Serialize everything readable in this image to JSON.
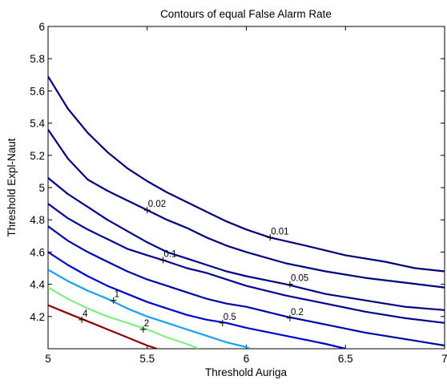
{
  "chart_data": {
    "type": "line",
    "title": "Contours of equal False Alarm Rate",
    "xlabel": "Threshold Auriga",
    "ylabel": "Threshold Expl-Naut",
    "xlim": [
      5,
      7
    ],
    "ylim": [
      4,
      6
    ],
    "xticks": [
      "5",
      "5.5",
      "6",
      "6.5",
      "7"
    ],
    "yticks": [
      "4.2",
      "4.4",
      "4.6",
      "4.8",
      "5",
      "5.2",
      "5.4",
      "5.6",
      "5.8",
      "6"
    ],
    "grid": false,
    "series": [
      {
        "name": "0.01",
        "color": "#00007a",
        "points": [
          [
            5.0,
            5.69
          ],
          [
            5.1,
            5.49
          ],
          [
            5.2,
            5.34
          ],
          [
            5.3,
            5.22
          ],
          [
            5.4,
            5.12
          ],
          [
            5.5,
            5.04
          ],
          [
            5.6,
            4.97
          ],
          [
            5.7,
            4.91
          ],
          [
            5.8,
            4.85
          ],
          [
            5.9,
            4.79
          ],
          [
            6.0,
            4.74
          ],
          [
            6.12,
            4.69
          ],
          [
            6.3,
            4.64
          ],
          [
            6.5,
            4.58
          ],
          [
            6.7,
            4.54
          ],
          [
            6.85,
            4.5
          ],
          [
            7.0,
            4.48
          ]
        ]
      },
      {
        "name": "0.02",
        "color": "#00007f",
        "points": [
          [
            5.0,
            5.36
          ],
          [
            5.1,
            5.18
          ],
          [
            5.2,
            5.05
          ],
          [
            5.3,
            4.98
          ],
          [
            5.4,
            4.92
          ],
          [
            5.5,
            4.86
          ],
          [
            5.6,
            4.8
          ],
          [
            5.7,
            4.75
          ],
          [
            5.8,
            4.69
          ],
          [
            5.9,
            4.64
          ],
          [
            6.0,
            4.6
          ],
          [
            6.2,
            4.53
          ],
          [
            6.4,
            4.48
          ],
          [
            6.6,
            4.44
          ],
          [
            6.8,
            4.41
          ],
          [
            7.0,
            4.38
          ]
        ]
      },
      {
        "name": "0.05",
        "color": "#000088",
        "points": [
          [
            5.0,
            5.06
          ],
          [
            5.1,
            4.96
          ],
          [
            5.2,
            4.88
          ],
          [
            5.3,
            4.8
          ],
          [
            5.4,
            4.73
          ],
          [
            5.5,
            4.66
          ],
          [
            5.6,
            4.6
          ],
          [
            5.7,
            4.56
          ],
          [
            5.8,
            4.52
          ],
          [
            5.9,
            4.48
          ],
          [
            6.0,
            4.45
          ],
          [
            6.2,
            4.4
          ],
          [
            6.4,
            4.34
          ],
          [
            6.6,
            4.3
          ],
          [
            6.8,
            4.26
          ],
          [
            7.0,
            4.24
          ]
        ]
      },
      {
        "name": "0.1",
        "color": "#000094",
        "points": [
          [
            5.0,
            4.9
          ],
          [
            5.1,
            4.81
          ],
          [
            5.2,
            4.74
          ],
          [
            5.3,
            4.68
          ],
          [
            5.4,
            4.62
          ],
          [
            5.5,
            4.58
          ],
          [
            5.58,
            4.55
          ],
          [
            5.7,
            4.5
          ],
          [
            5.8,
            4.47
          ],
          [
            5.9,
            4.43
          ],
          [
            6.0,
            4.39
          ],
          [
            6.2,
            4.33
          ],
          [
            6.4,
            4.28
          ],
          [
            6.6,
            4.23
          ],
          [
            6.8,
            4.19
          ],
          [
            7.0,
            4.16
          ]
        ]
      },
      {
        "name": "0.2",
        "color": "#0000a8",
        "points": [
          [
            5.0,
            4.76
          ],
          [
            5.1,
            4.67
          ],
          [
            5.2,
            4.6
          ],
          [
            5.3,
            4.54
          ],
          [
            5.4,
            4.48
          ],
          [
            5.5,
            4.43
          ],
          [
            5.6,
            4.39
          ],
          [
            5.7,
            4.35
          ],
          [
            5.8,
            4.31
          ],
          [
            5.9,
            4.28
          ],
          [
            6.0,
            4.26
          ],
          [
            6.2,
            4.2
          ],
          [
            6.4,
            4.15
          ],
          [
            6.6,
            4.1
          ],
          [
            6.8,
            4.06
          ],
          [
            7.0,
            4.02
          ]
        ]
      },
      {
        "name": "0.5",
        "color": "#0000cd",
        "points": [
          [
            5.0,
            4.6
          ],
          [
            5.1,
            4.52
          ],
          [
            5.2,
            4.45
          ],
          [
            5.3,
            4.39
          ],
          [
            5.4,
            4.34
          ],
          [
            5.5,
            4.29
          ],
          [
            5.6,
            4.25
          ],
          [
            5.7,
            4.21
          ],
          [
            5.8,
            4.18
          ],
          [
            5.9,
            4.16
          ],
          [
            6.0,
            4.13
          ],
          [
            6.2,
            4.08
          ],
          [
            6.4,
            4.03
          ],
          [
            6.5,
            4.0
          ]
        ]
      },
      {
        "name": "1",
        "color": "#1a9fff",
        "points": [
          [
            5.0,
            4.49
          ],
          [
            5.1,
            4.42
          ],
          [
            5.2,
            4.36
          ],
          [
            5.3,
            4.31
          ],
          [
            5.4,
            4.25
          ],
          [
            5.5,
            4.2
          ],
          [
            5.6,
            4.16
          ],
          [
            5.7,
            4.12
          ],
          [
            5.8,
            4.08
          ],
          [
            5.9,
            4.04
          ],
          [
            6.0,
            4.01
          ],
          [
            6.02,
            4.0
          ]
        ]
      },
      {
        "name": "2",
        "color": "#7ff07f",
        "points": [
          [
            5.0,
            4.38
          ],
          [
            5.1,
            4.31
          ],
          [
            5.2,
            4.25
          ],
          [
            5.3,
            4.2
          ],
          [
            5.4,
            4.16
          ],
          [
            5.5,
            4.12
          ],
          [
            5.6,
            4.07
          ],
          [
            5.7,
            4.03
          ],
          [
            5.76,
            4.0
          ]
        ]
      },
      {
        "name": "4",
        "color": "#8b0000",
        "points": [
          [
            5.0,
            4.27
          ],
          [
            5.1,
            4.22
          ],
          [
            5.2,
            4.17
          ],
          [
            5.3,
            4.12
          ],
          [
            5.4,
            4.07
          ],
          [
            5.5,
            4.02
          ],
          [
            5.55,
            4.0
          ]
        ]
      }
    ],
    "contour_labels": [
      {
        "text": "0.01",
        "x": 6.12,
        "y": 4.69
      },
      {
        "text": "0.02",
        "x": 5.5,
        "y": 4.86
      },
      {
        "text": "0.05",
        "x": 6.22,
        "y": 4.4
      },
      {
        "text": "0.1",
        "x": 5.58,
        "y": 4.55
      },
      {
        "text": "0.2",
        "x": 6.22,
        "y": 4.19
      },
      {
        "text": "0.5",
        "x": 5.88,
        "y": 4.16
      },
      {
        "text": "1",
        "x": 5.33,
        "y": 4.3
      },
      {
        "text": "2",
        "x": 5.48,
        "y": 4.12
      },
      {
        "text": "4",
        "x": 5.17,
        "y": 4.18
      }
    ]
  }
}
